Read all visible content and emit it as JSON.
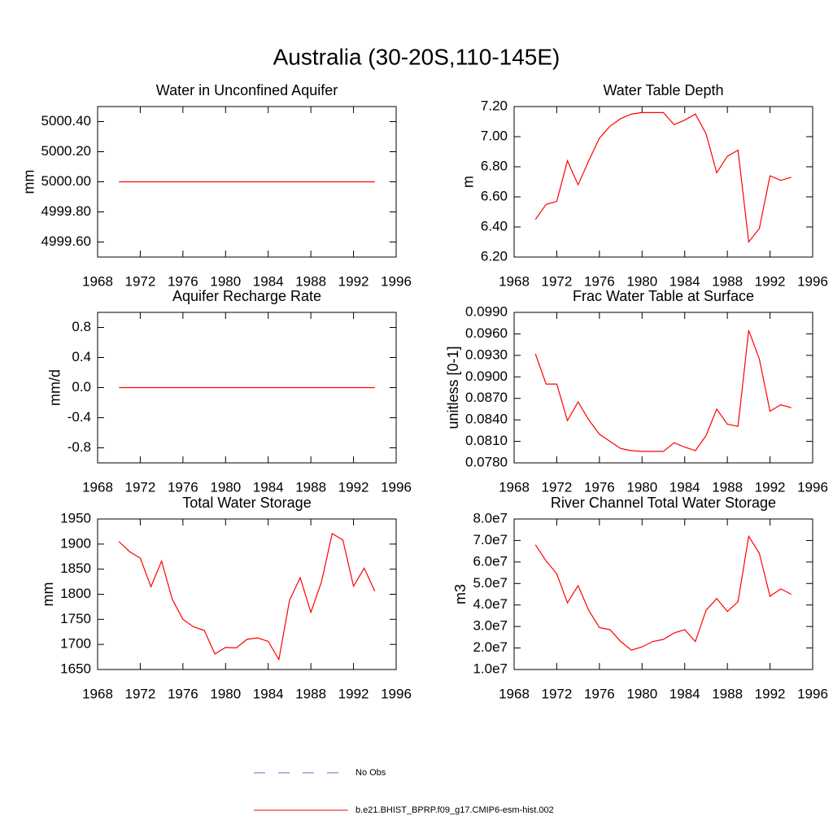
{
  "title": "Australia (30-20S,110-145E)",
  "chart_data": [
    {
      "type": "line",
      "title": "Water in Unconfined Aquifer",
      "ylabel": "mm",
      "x": [
        1970,
        1971,
        1972,
        1973,
        1974,
        1975,
        1976,
        1977,
        1978,
        1979,
        1980,
        1981,
        1982,
        1983,
        1984,
        1985,
        1986,
        1987,
        1988,
        1989,
        1990,
        1991,
        1992,
        1993,
        1994
      ],
      "series": [
        {
          "color": "#ff0000",
          "values": [
            5000,
            5000,
            5000,
            5000,
            5000,
            5000,
            5000,
            5000,
            5000,
            5000,
            5000,
            5000,
            5000,
            5000,
            5000,
            5000,
            5000,
            5000,
            5000,
            5000,
            5000,
            5000,
            5000,
            5000,
            5000
          ]
        }
      ],
      "xlim": [
        1968,
        1996
      ],
      "xticks": [
        1968,
        1972,
        1976,
        1980,
        1984,
        1988,
        1992,
        1996
      ],
      "ylim": [
        4999.5,
        5000.5
      ],
      "yticks": [
        {
          "value": 4999.6,
          "label": "4999.60"
        },
        {
          "value": 4999.8,
          "label": "4999.80"
        },
        {
          "value": 5000,
          "label": "5000.00"
        },
        {
          "value": 5000.2,
          "label": "5000.20"
        },
        {
          "value": 5000.4,
          "label": "5000.40"
        }
      ]
    },
    {
      "type": "line",
      "title": "Water Table Depth",
      "ylabel": "m",
      "x": [
        1970,
        1971,
        1972,
        1973,
        1974,
        1975,
        1976,
        1977,
        1978,
        1979,
        1980,
        1981,
        1982,
        1983,
        1984,
        1985,
        1986,
        1987,
        1988,
        1989,
        1990,
        1991,
        1992,
        1993,
        1994
      ],
      "series": [
        {
          "color": "#ff0000",
          "values": [
            6.45,
            6.55,
            6.57,
            6.84,
            6.68,
            6.84,
            6.99,
            7.07,
            7.12,
            7.15,
            7.16,
            7.16,
            7.16,
            7.08,
            7.11,
            7.15,
            7.02,
            6.76,
            6.87,
            6.91,
            6.3,
            6.39,
            6.74,
            6.71,
            6.73
          ]
        }
      ],
      "xlim": [
        1968,
        1996
      ],
      "xticks": [
        1968,
        1972,
        1976,
        1980,
        1984,
        1988,
        1992,
        1996
      ],
      "ylim": [
        6.2,
        7.2
      ],
      "yticks": [
        {
          "value": 6.2,
          "label": "6.20"
        },
        {
          "value": 6.4,
          "label": "6.40"
        },
        {
          "value": 6.6,
          "label": "6.60"
        },
        {
          "value": 6.8,
          "label": "6.80"
        },
        {
          "value": 7.0,
          "label": "7.00"
        },
        {
          "value": 7.2,
          "label": "7.20"
        }
      ]
    },
    {
      "type": "line",
      "title": "Aquifer Recharge Rate",
      "ylabel": "mm/d",
      "x": [
        1970,
        1971,
        1972,
        1973,
        1974,
        1975,
        1976,
        1977,
        1978,
        1979,
        1980,
        1981,
        1982,
        1983,
        1984,
        1985,
        1986,
        1987,
        1988,
        1989,
        1990,
        1991,
        1992,
        1993,
        1994
      ],
      "series": [
        {
          "color": "#ff0000",
          "values": [
            0,
            0,
            0,
            0,
            0,
            0,
            0,
            0,
            0,
            0,
            0,
            0,
            0,
            0,
            0,
            0,
            0,
            0,
            0,
            0,
            0,
            0,
            0,
            0,
            0
          ]
        }
      ],
      "xlim": [
        1968,
        1996
      ],
      "xticks": [
        1968,
        1972,
        1976,
        1980,
        1984,
        1988,
        1992,
        1996
      ],
      "ylim": [
        -1,
        1
      ],
      "yticks": [
        -0.8,
        -0.4,
        {
          "value": 0,
          "label": "0.0"
        },
        0.4,
        0.8
      ]
    },
    {
      "type": "line",
      "title": "Frac Water Table at Surface",
      "ylabel": "unitless [0-1]",
      "x": [
        1970,
        1971,
        1972,
        1973,
        1974,
        1975,
        1976,
        1977,
        1978,
        1979,
        1980,
        1981,
        1982,
        1983,
        1984,
        1985,
        1986,
        1987,
        1988,
        1989,
        1990,
        1991,
        1992,
        1993,
        1994
      ],
      "series": [
        {
          "color": "#ff0000",
          "values": [
            0.0932,
            0.089,
            0.089,
            0.0839,
            0.0865,
            0.084,
            0.082,
            0.081,
            0.08,
            0.0797,
            0.0796,
            0.0796,
            0.0796,
            0.0808,
            0.0802,
            0.0797,
            0.0818,
            0.0855,
            0.0834,
            0.0831,
            0.0965,
            0.0925,
            0.0852,
            0.0861,
            0.0857
          ]
        }
      ],
      "xlim": [
        1968,
        1996
      ],
      "xticks": [
        1968,
        1972,
        1976,
        1980,
        1984,
        1988,
        1992,
        1996
      ],
      "ylim": [
        0.078,
        0.099
      ],
      "yticks": [
        {
          "value": 0.078,
          "label": "0.0780"
        },
        {
          "value": 0.081,
          "label": "0.0810"
        },
        {
          "value": 0.084,
          "label": "0.0840"
        },
        {
          "value": 0.087,
          "label": "0.0870"
        },
        {
          "value": 0.09,
          "label": "0.0900"
        },
        {
          "value": 0.093,
          "label": "0.0930"
        },
        {
          "value": 0.096,
          "label": "0.0960"
        },
        {
          "value": 0.099,
          "label": "0.0990"
        }
      ]
    },
    {
      "type": "line",
      "title": "Total Water Storage",
      "ylabel": "mm",
      "x": [
        1970,
        1971,
        1972,
        1973,
        1974,
        1975,
        1976,
        1977,
        1978,
        1979,
        1980,
        1981,
        1982,
        1983,
        1984,
        1985,
        1986,
        1987,
        1988,
        1989,
        1990,
        1991,
        1992,
        1993,
        1994
      ],
      "series": [
        {
          "color": "#ff0000",
          "values": [
            1905,
            1885,
            1872,
            1815,
            1866,
            1790,
            1750,
            1735,
            1728,
            1681,
            1694,
            1693,
            1710,
            1713,
            1706,
            1670,
            1788,
            1833,
            1764,
            1825,
            1921,
            1908,
            1816,
            1852,
            1806
          ]
        }
      ],
      "xlim": [
        1968,
        1996
      ],
      "xticks": [
        1968,
        1972,
        1976,
        1980,
        1984,
        1988,
        1992,
        1996
      ],
      "ylim": [
        1650,
        1950
      ],
      "yticks": [
        1650,
        1700,
        1750,
        1800,
        1850,
        1900,
        1950
      ]
    },
    {
      "type": "line",
      "title": "River Channel Total Water Storage",
      "ylabel": "m3",
      "x": [
        1970,
        1971,
        1972,
        1973,
        1974,
        1975,
        1976,
        1977,
        1978,
        1979,
        1980,
        1981,
        1982,
        1983,
        1984,
        1985,
        1986,
        1987,
        1988,
        1989,
        1990,
        1991,
        1992,
        1993,
        1994
      ],
      "series": [
        {
          "color": "#ff0000",
          "values": [
            68000000,
            60500000,
            54500000,
            41000000,
            49000000,
            37500000,
            29500000,
            28500000,
            23000000,
            19000000,
            20500000,
            23000000,
            24000000,
            27000000,
            28500000,
            23000000,
            37500000,
            43000000,
            37000000,
            41500000,
            72000000,
            64000000,
            44000000,
            47500000,
            45000000
          ]
        }
      ],
      "xlim": [
        1968,
        1996
      ],
      "xticks": [
        1968,
        1972,
        1976,
        1980,
        1984,
        1988,
        1992,
        1996
      ],
      "ylim": [
        10000000,
        80000000
      ],
      "yticks": [
        {
          "value": 10000000,
          "label": "1.0e7"
        },
        {
          "value": 20000000,
          "label": "2.0e7"
        },
        {
          "value": 30000000,
          "label": "3.0e7"
        },
        {
          "value": 40000000,
          "label": "4.0e7"
        },
        {
          "value": 50000000,
          "label": "5.0e7"
        },
        {
          "value": 60000000,
          "label": "6.0e7"
        },
        {
          "value": 70000000,
          "label": "7.0e7"
        },
        {
          "value": 80000000,
          "label": "8.0e7"
        }
      ]
    }
  ],
  "legend": {
    "entries": [
      {
        "label": "No Obs",
        "color": "#6a6ac8",
        "dashed": true
      },
      {
        "label": "b.e21.BHIST_BPRP.f09_g17.CMIP6-esm-hist.002",
        "color": "#ff0000",
        "dashed": false
      }
    ]
  }
}
